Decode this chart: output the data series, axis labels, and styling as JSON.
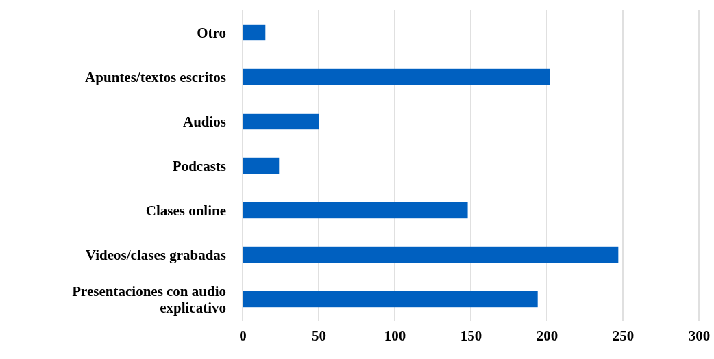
{
  "chart_data": {
    "type": "bar",
    "orientation": "horizontal",
    "categories": [
      "Otro",
      "Apuntes/textos escritos",
      "Audios",
      "Podcasts",
      "Clases online",
      "Videos/clases grabadas",
      "Presentaciones con audio explicativo"
    ],
    "values": [
      15,
      202,
      50,
      24,
      148,
      247,
      194
    ],
    "color": "#0060c0",
    "xlim": [
      0,
      300
    ],
    "xticks": [
      0,
      50,
      100,
      150,
      200,
      250,
      300
    ],
    "grid": "x"
  }
}
